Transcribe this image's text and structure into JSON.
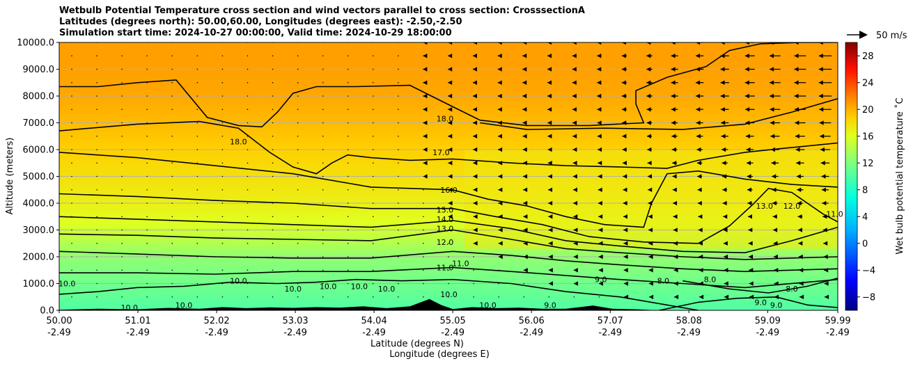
{
  "chart_data": {
    "type": "heatmap",
    "title": "Wetbulb Potential Temperature cross section and wind vectors parallel to cross section: CrosssectionA",
    "subtitle_lines": [
      "Latitudes (degrees north): 50.00,60.00, Longitudes (degrees east): -2.50,-2.50",
      "Simulation start time: 2024-10-27 00:00:00, Valid time: 2024-10-29 18:00:00"
    ],
    "xlabel": "Latitude (degrees N)",
    "xlabel2": "Longitude (degrees E)",
    "ylabel": "Altitude (meters)",
    "xlim": [
      50.0,
      59.99
    ],
    "ylim": [
      0,
      10000
    ],
    "x_ticks": [
      {
        "lat": "50.00",
        "lon": "-2.49",
        "v": 50.0
      },
      {
        "lat": "51.01",
        "lon": "-2.49",
        "v": 51.01
      },
      {
        "lat": "52.02",
        "lon": "-2.49",
        "v": 52.02
      },
      {
        "lat": "53.03",
        "lon": "-2.49",
        "v": 53.03
      },
      {
        "lat": "54.04",
        "lon": "-2.49",
        "v": 54.04
      },
      {
        "lat": "55.05",
        "lon": "-2.49",
        "v": 55.05
      },
      {
        "lat": "56.06",
        "lon": "-2.49",
        "v": 56.06
      },
      {
        "lat": "57.07",
        "lon": "-2.49",
        "v": 57.07
      },
      {
        "lat": "58.08",
        "lon": "-2.49",
        "v": 58.08
      },
      {
        "lat": "59.09",
        "lon": "-2.49",
        "v": 59.09
      },
      {
        "lat": "59.99",
        "lon": "-2.49",
        "v": 59.99
      }
    ],
    "y_ticks": [
      {
        "label": "0.0",
        "v": 0
      },
      {
        "label": "1000.0",
        "v": 1000
      },
      {
        "label": "2000.0",
        "v": 2000
      },
      {
        "label": "3000.0",
        "v": 3000
      },
      {
        "label": "4000.0",
        "v": 4000
      },
      {
        "label": "5000.0",
        "v": 5000
      },
      {
        "label": "6000.0",
        "v": 6000
      },
      {
        "label": "7000.0",
        "v": 7000
      },
      {
        "label": "8000.0",
        "v": 8000
      },
      {
        "label": "9000.0",
        "v": 9000
      },
      {
        "label": "10000.0",
        "v": 10000
      }
    ],
    "grid": true,
    "colorbar": {
      "label": "Wet bulb potential temperature ˚C",
      "range": [
        -10,
        30
      ],
      "ticks": [
        {
          "label": "−8",
          "v": -8
        },
        {
          "label": "−4",
          "v": -4
        },
        {
          "label": "0",
          "v": 0
        },
        {
          "label": "4",
          "v": 4
        },
        {
          "label": "8",
          "v": 8
        },
        {
          "label": "12",
          "v": 12
        },
        {
          "label": "16",
          "v": 16
        },
        {
          "label": "20",
          "v": 20
        },
        {
          "label": "24",
          "v": 24
        },
        {
          "label": "28",
          "v": 28
        }
      ]
    },
    "wind_key": {
      "label": "50 m/s",
      "speed": 50
    },
    "background_field": [
      {
        "alt": 0,
        "temp": 9.5
      },
      {
        "alt": 1000,
        "temp": 10.5
      },
      {
        "alt": 2000,
        "temp": 11.5
      },
      {
        "alt": 3000,
        "temp": 13.5
      },
      {
        "alt": 4000,
        "temp": 15.0
      },
      {
        "alt": 5000,
        "temp": 16.0
      },
      {
        "alt": 6000,
        "temp": 17.0
      },
      {
        "alt": 7000,
        "temp": 17.8
      },
      {
        "alt": 8000,
        "temp": 18.5
      },
      {
        "alt": 9000,
        "temp": 18.8
      },
      {
        "alt": 10000,
        "temp": 18.8
      }
    ],
    "warm_patches": [
      {
        "lat0": 55.2,
        "lat1": 59.99,
        "alt0": 2300,
        "alt1": 6000,
        "temp": 15.5
      }
    ],
    "contours": [
      {
        "level": 18.0,
        "points": [
          [
            50.0,
            8350
          ],
          [
            50.5,
            8350
          ],
          [
            51.0,
            8500
          ],
          [
            51.5,
            8600
          ],
          [
            51.9,
            7200
          ],
          [
            52.3,
            6900
          ],
          [
            52.6,
            6850
          ],
          [
            52.8,
            7400
          ],
          [
            53.0,
            8100
          ],
          [
            53.3,
            8350
          ],
          [
            53.8,
            8350
          ],
          [
            54.5,
            8400
          ],
          [
            55.05,
            7600
          ],
          [
            55.4,
            7100
          ],
          [
            56.0,
            6900
          ],
          [
            56.8,
            6900
          ],
          [
            57.5,
            7000
          ],
          [
            57.4,
            7700
          ],
          [
            57.4,
            8200
          ],
          [
            57.8,
            8700
          ],
          [
            58.3,
            9100
          ],
          [
            58.6,
            9700
          ],
          [
            59.0,
            9950
          ],
          [
            59.5,
            10000
          ],
          [
            59.99,
            10000
          ]
        ]
      },
      {
        "level": 18.0,
        "points": [
          [
            55.4,
            7000
          ],
          [
            56.0,
            6750
          ],
          [
            57.0,
            6800
          ],
          [
            58.0,
            6750
          ],
          [
            58.8,
            6950
          ],
          [
            59.4,
            7400
          ],
          [
            59.99,
            7900
          ]
        ]
      },
      {
        "level": 17.0,
        "points": [
          [
            50.0,
            6700
          ],
          [
            50.4,
            6800
          ],
          [
            51.0,
            6950
          ],
          [
            51.8,
            7050
          ],
          [
            52.3,
            6800
          ],
          [
            52.7,
            5900
          ],
          [
            53.0,
            5350
          ],
          [
            53.3,
            5100
          ],
          [
            53.5,
            5500
          ],
          [
            53.7,
            5800
          ],
          [
            54.0,
            5700
          ],
          [
            54.5,
            5600
          ],
          [
            55.05,
            5650
          ],
          [
            55.8,
            5500
          ],
          [
            56.5,
            5400
          ],
          [
            57.2,
            5350
          ],
          [
            57.8,
            5300
          ],
          [
            58.2,
            5600
          ],
          [
            58.8,
            5900
          ],
          [
            59.3,
            6050
          ],
          [
            59.99,
            6250
          ]
        ]
      },
      {
        "level": 16.0,
        "points": [
          [
            50.0,
            5900
          ],
          [
            51.0,
            5700
          ],
          [
            52.0,
            5400
          ],
          [
            53.0,
            5100
          ],
          [
            54.0,
            4600
          ],
          [
            55.05,
            4500
          ],
          [
            55.5,
            4150
          ],
          [
            56.0,
            3900
          ],
          [
            56.5,
            3500
          ],
          [
            57.0,
            3200
          ],
          [
            57.5,
            3100
          ],
          [
            57.6,
            4000
          ],
          [
            57.8,
            5100
          ],
          [
            58.2,
            5200
          ],
          [
            58.8,
            4900
          ],
          [
            59.4,
            4700
          ],
          [
            59.99,
            4600
          ]
        ]
      },
      {
        "level": 15.0,
        "points": [
          [
            50.0,
            4350
          ],
          [
            51.0,
            4250
          ],
          [
            52.0,
            4100
          ],
          [
            53.0,
            4000
          ],
          [
            54.0,
            3800
          ],
          [
            55.05,
            3800
          ],
          [
            55.6,
            3500
          ],
          [
            56.2,
            3200
          ],
          [
            56.8,
            2750
          ],
          [
            57.5,
            2550
          ],
          [
            58.2,
            2500
          ],
          [
            58.6,
            3150
          ],
          [
            58.9,
            3950
          ],
          [
            59.1,
            4550
          ],
          [
            59.4,
            4400
          ],
          [
            59.8,
            3600
          ],
          [
            59.99,
            3300
          ]
        ]
      },
      {
        "level": 14.0,
        "points": [
          [
            50.0,
            3500
          ],
          [
            51.0,
            3400
          ],
          [
            52.0,
            3300
          ],
          [
            53.0,
            3200
          ],
          [
            54.0,
            3100
          ],
          [
            55.05,
            3350
          ],
          [
            55.8,
            3050
          ],
          [
            56.5,
            2600
          ],
          [
            57.2,
            2400
          ],
          [
            58.0,
            2200
          ],
          [
            58.8,
            2150
          ],
          [
            59.4,
            2600
          ],
          [
            59.99,
            3100
          ]
        ]
      },
      {
        "level": 13.0,
        "points": [
          [
            50.0,
            2850
          ],
          [
            51.0,
            2800
          ],
          [
            52.0,
            2700
          ],
          [
            53.0,
            2650
          ],
          [
            54.0,
            2600
          ],
          [
            55.05,
            3000
          ],
          [
            55.8,
            2650
          ],
          [
            56.5,
            2300
          ],
          [
            57.2,
            2150
          ],
          [
            58.0,
            2000
          ],
          [
            58.8,
            1900
          ],
          [
            59.99,
            2000
          ]
        ]
      },
      {
        "level": 12.0,
        "points": [
          [
            50.0,
            2200
          ],
          [
            51.0,
            2100
          ],
          [
            52.0,
            2000
          ],
          [
            53.0,
            1950
          ],
          [
            54.0,
            1950
          ],
          [
            55.05,
            2200
          ],
          [
            55.8,
            2050
          ],
          [
            56.5,
            1850
          ],
          [
            57.2,
            1700
          ],
          [
            58.0,
            1550
          ],
          [
            58.8,
            1450
          ],
          [
            59.99,
            1550
          ]
        ]
      },
      {
        "level": 11.0,
        "points": [
          [
            50.0,
            1400
          ],
          [
            51.0,
            1400
          ],
          [
            52.0,
            1350
          ],
          [
            53.0,
            1450
          ],
          [
            54.0,
            1450
          ],
          [
            55.05,
            1600
          ],
          [
            55.8,
            1450
          ],
          [
            56.5,
            1300
          ],
          [
            57.2,
            1150
          ],
          [
            58.0,
            1000
          ],
          [
            58.8,
            850
          ],
          [
            59.99,
            1150
          ]
        ]
      },
      {
        "level": 10.0,
        "points": [
          [
            50.0,
            600
          ],
          [
            50.5,
            700
          ],
          [
            51.0,
            850
          ],
          [
            51.6,
            900
          ],
          [
            52.2,
            1050
          ],
          [
            52.8,
            1000
          ],
          [
            53.3,
            1050
          ],
          [
            53.8,
            1150
          ],
          [
            54.4,
            1100
          ],
          [
            55.05,
            1150
          ],
          [
            55.8,
            1000
          ],
          [
            56.5,
            700
          ],
          [
            57.2,
            500
          ],
          [
            57.8,
            200
          ],
          [
            58.2,
            0
          ]
        ]
      },
      {
        "level": 9.0,
        "points": [
          [
            57.7,
            0
          ],
          [
            58.2,
            300
          ],
          [
            58.7,
            450
          ],
          [
            59.2,
            500
          ],
          [
            59.6,
            200
          ],
          [
            59.99,
            100
          ]
        ]
      },
      {
        "level": 8.0,
        "points": [
          [
            58.0,
            1100
          ],
          [
            58.6,
            800
          ],
          [
            59.1,
            650
          ],
          [
            59.6,
            900
          ],
          [
            59.99,
            1200
          ]
        ]
      }
    ],
    "contour_labels": [
      {
        "text": "18.0",
        "lat": 54.95,
        "alt": 7150
      },
      {
        "text": "18.0",
        "lat": 52.3,
        "alt": 6300
      },
      {
        "text": "17.0",
        "lat": 54.9,
        "alt": 5900
      },
      {
        "text": "16.0",
        "lat": 55.0,
        "alt": 4500
      },
      {
        "text": "15.0",
        "lat": 54.95,
        "alt": 3750
      },
      {
        "text": "14.0",
        "lat": 54.95,
        "alt": 3400
      },
      {
        "text": "13.0",
        "lat": 54.95,
        "alt": 3050
      },
      {
        "text": "12.0",
        "lat": 54.95,
        "alt": 2550
      },
      {
        "text": "11.0",
        "lat": 54.95,
        "alt": 1600
      },
      {
        "text": "11.0",
        "lat": 55.15,
        "alt": 1750
      },
      {
        "text": "10.0",
        "lat": 53.0,
        "alt": 800
      },
      {
        "text": "10.0",
        "lat": 53.45,
        "alt": 900
      },
      {
        "text": "10.0",
        "lat": 53.85,
        "alt": 900
      },
      {
        "text": "10.0",
        "lat": 54.2,
        "alt": 800
      },
      {
        "text": "10.0",
        "lat": 55.0,
        "alt": 600
      },
      {
        "text": "10.0",
        "lat": 52.3,
        "alt": 1100
      },
      {
        "text": "10.0",
        "lat": 50.1,
        "alt": 1000
      },
      {
        "text": "10.0",
        "lat": 51.6,
        "alt": 200
      },
      {
        "text": "10.0",
        "lat": 50.9,
        "alt": 100
      },
      {
        "text": "13.0",
        "lat": 59.05,
        "alt": 3900
      },
      {
        "text": "12.0",
        "lat": 59.4,
        "alt": 3900
      },
      {
        "text": "11.0",
        "lat": 59.95,
        "alt": 3600
      },
      {
        "text": "9.0",
        "lat": 56.95,
        "alt": 1150
      },
      {
        "text": "9.0",
        "lat": 56.3,
        "alt": 200
      },
      {
        "text": "9.0",
        "lat": 59.2,
        "alt": 200
      },
      {
        "text": "8.0",
        "lat": 57.75,
        "alt": 1100
      },
      {
        "text": "8.0",
        "lat": 58.35,
        "alt": 1150
      },
      {
        "text": "8.0",
        "lat": 59.4,
        "alt": 800
      },
      {
        "text": "9.0",
        "lat": 59.0,
        "alt": 300
      },
      {
        "text": "10.0",
        "lat": 55.5,
        "alt": 200
      }
    ],
    "terrain": [
      [
        50.0,
        20
      ],
      [
        50.5,
        60
      ],
      [
        51.0,
        40
      ],
      [
        51.4,
        90
      ],
      [
        51.8,
        60
      ],
      [
        52.1,
        120
      ],
      [
        52.4,
        80
      ],
      [
        52.7,
        110
      ],
      [
        53.0,
        90
      ],
      [
        53.3,
        120
      ],
      [
        53.6,
        100
      ],
      [
        53.9,
        150
      ],
      [
        54.2,
        80
      ],
      [
        54.5,
        150
      ],
      [
        54.75,
        420
      ],
      [
        54.9,
        200
      ],
      [
        55.05,
        50
      ],
      [
        55.3,
        120
      ],
      [
        55.6,
        80
      ],
      [
        55.9,
        100
      ],
      [
        56.2,
        60
      ],
      [
        56.5,
        60
      ],
      [
        56.85,
        180
      ],
      [
        57.1,
        60
      ],
      [
        57.4,
        40
      ],
      [
        57.7,
        0
      ],
      [
        59.99,
        0
      ]
    ],
    "wind_profile": [
      {
        "alt": 500,
        "u_lat": [
          0,
          0,
          0,
          0,
          0,
          0,
          0,
          0,
          0,
          0,
          0,
          0,
          0,
          0,
          0,
          0,
          0,
          0,
          0,
          0,
          0,
          0,
          0,
          0,
          0,
          0,
          0,
          0,
          0,
          0,
          0,
          0
        ]
      },
      {
        "alt": 1000,
        "u_lat": [
          0,
          0,
          0,
          0,
          0,
          0,
          0,
          0,
          0,
          0,
          0,
          0,
          0,
          0,
          0,
          0,
          0,
          0,
          0,
          0,
          0,
          0,
          0,
          0,
          0,
          0,
          0,
          0,
          0,
          0,
          0,
          0
        ]
      }
    ],
    "wind_u_columns": [
      0,
      0,
      0,
      0,
      0,
      0,
      0,
      0,
      0,
      0,
      0,
      0,
      0,
      0,
      -2,
      -3,
      -4,
      -5,
      -7,
      -8,
      -9,
      -11,
      -13,
      -15,
      -18,
      -20,
      -22,
      -25,
      -28,
      -30,
      -33
    ],
    "wind_u_rows_scale": [
      0.1,
      0.15,
      0.2,
      0.25,
      0.3,
      0.35,
      0.4,
      0.5,
      0.55,
      0.6,
      0.68,
      0.76,
      0.84,
      0.9,
      0.95,
      1.0,
      1.0,
      1.0,
      1.0,
      1.0
    ]
  }
}
